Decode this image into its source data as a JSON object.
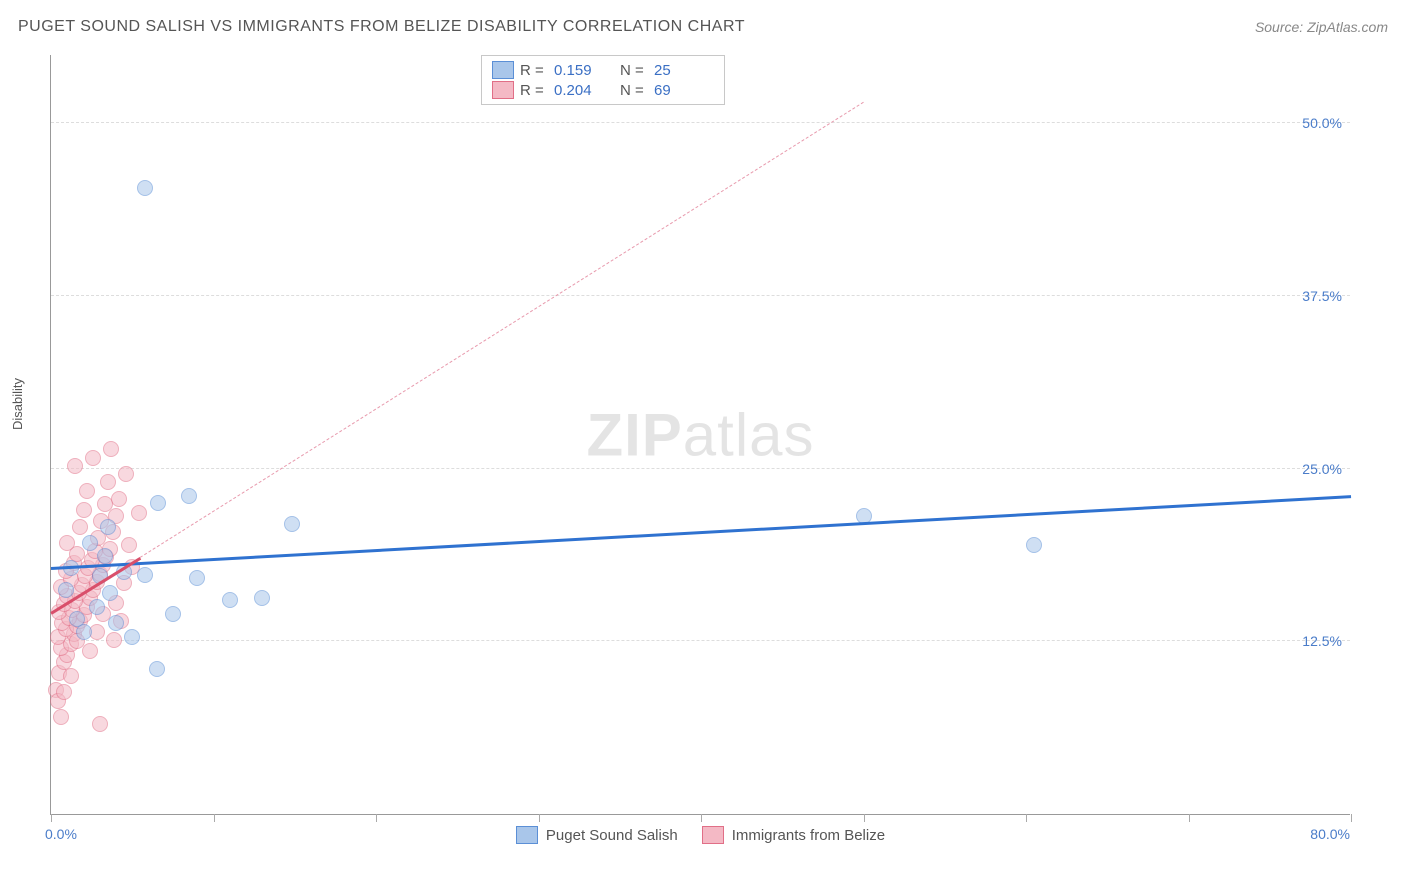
{
  "header": {
    "title": "PUGET SOUND SALISH VS IMMIGRANTS FROM BELIZE DISABILITY CORRELATION CHART",
    "source": "Source: ZipAtlas.com"
  },
  "ylabel": "Disability",
  "watermark": {
    "bold": "ZIP",
    "light": "atlas"
  },
  "chart": {
    "type": "scatter",
    "xlim": [
      0,
      80
    ],
    "ylim": [
      0,
      55
    ],
    "xlim_labels": {
      "min": "0.0%",
      "max": "80.0%"
    },
    "xtick_positions": [
      0,
      10,
      20,
      30,
      40,
      50,
      60,
      70,
      80
    ],
    "yticks": [
      {
        "v": 12.5,
        "label": "12.5%"
      },
      {
        "v": 25.0,
        "label": "25.0%"
      },
      {
        "v": 37.5,
        "label": "37.5%"
      },
      {
        "v": 50.0,
        "label": "50.0%"
      }
    ],
    "grid_color": "#e2e2e2",
    "background_color": "#ffffff",
    "marker_radius": 8,
    "marker_opacity": 0.55,
    "series": [
      {
        "name": "Puget Sound Salish",
        "fill": "#a9c6ea",
        "stroke": "#5b8fd6",
        "R": "0.159",
        "N": "25",
        "trend": {
          "x1": 0,
          "y1": 17.8,
          "x2": 80,
          "y2": 23.0,
          "color": "#2f72d0",
          "width": 2.5,
          "dash": "none"
        },
        "points": [
          [
            5.8,
            45.3
          ],
          [
            3.5,
            20.8
          ],
          [
            6.6,
            22.5
          ],
          [
            8.5,
            23.0
          ],
          [
            14.8,
            21.0
          ],
          [
            3.0,
            17.2
          ],
          [
            4.5,
            17.5
          ],
          [
            5.8,
            17.3
          ],
          [
            11.0,
            15.5
          ],
          [
            13.0,
            15.6
          ],
          [
            2.0,
            13.2
          ],
          [
            5.0,
            12.8
          ],
          [
            6.5,
            10.5
          ],
          [
            50.0,
            21.6
          ],
          [
            60.5,
            19.5
          ],
          [
            2.8,
            15.0
          ],
          [
            3.3,
            18.7
          ],
          [
            0.9,
            16.2
          ],
          [
            1.6,
            14.1
          ],
          [
            4.0,
            13.8
          ],
          [
            2.4,
            19.6
          ],
          [
            7.5,
            14.5
          ],
          [
            9.0,
            17.1
          ],
          [
            1.2,
            17.8
          ],
          [
            3.6,
            16.0
          ]
        ]
      },
      {
        "name": "Immigrants from Belize",
        "fill": "#f4b9c5",
        "stroke": "#e16f87",
        "R": "0.204",
        "N": "69",
        "trend": {
          "x1": 0,
          "y1": 14.5,
          "x2": 50,
          "y2": 51.5,
          "color": "#e89aad",
          "width": 1.5,
          "dash": "5,5"
        },
        "trend_solid": {
          "x1": 0,
          "y1": 14.5,
          "x2": 5.5,
          "y2": 18.5,
          "color": "#d94f6b",
          "width": 2.5
        },
        "points": [
          [
            0.3,
            9.0
          ],
          [
            0.5,
            10.2
          ],
          [
            0.8,
            11.0
          ],
          [
            1.0,
            11.5
          ],
          [
            0.6,
            12.0
          ],
          [
            1.2,
            12.3
          ],
          [
            0.4,
            12.8
          ],
          [
            1.4,
            13.0
          ],
          [
            0.9,
            13.4
          ],
          [
            1.6,
            13.6
          ],
          [
            0.7,
            13.8
          ],
          [
            1.8,
            14.0
          ],
          [
            1.1,
            14.2
          ],
          [
            2.0,
            14.4
          ],
          [
            0.5,
            14.6
          ],
          [
            1.3,
            14.8
          ],
          [
            2.2,
            15.0
          ],
          [
            0.8,
            15.2
          ],
          [
            1.5,
            15.4
          ],
          [
            2.4,
            15.6
          ],
          [
            1.0,
            15.8
          ],
          [
            1.7,
            16.0
          ],
          [
            2.6,
            16.2
          ],
          [
            0.6,
            16.4
          ],
          [
            1.9,
            16.6
          ],
          [
            2.8,
            16.8
          ],
          [
            1.2,
            17.0
          ],
          [
            2.1,
            17.2
          ],
          [
            3.0,
            17.4
          ],
          [
            0.9,
            17.6
          ],
          [
            2.3,
            17.8
          ],
          [
            3.2,
            18.0
          ],
          [
            1.4,
            18.2
          ],
          [
            2.5,
            18.4
          ],
          [
            3.4,
            18.6
          ],
          [
            1.6,
            18.8
          ],
          [
            2.7,
            19.0
          ],
          [
            3.6,
            19.2
          ],
          [
            1.0,
            19.6
          ],
          [
            2.9,
            20.0
          ],
          [
            3.8,
            20.4
          ],
          [
            1.8,
            20.8
          ],
          [
            3.1,
            21.2
          ],
          [
            4.0,
            21.6
          ],
          [
            2.0,
            22.0
          ],
          [
            3.3,
            22.4
          ],
          [
            4.2,
            22.8
          ],
          [
            2.2,
            23.4
          ],
          [
            3.5,
            24.0
          ],
          [
            4.6,
            24.6
          ],
          [
            1.5,
            25.2
          ],
          [
            2.6,
            25.8
          ],
          [
            3.7,
            26.4
          ],
          [
            0.4,
            8.2
          ],
          [
            0.6,
            7.0
          ],
          [
            3.0,
            6.5
          ],
          [
            1.2,
            10.0
          ],
          [
            0.8,
            8.8
          ],
          [
            2.4,
            11.8
          ],
          [
            1.6,
            12.5
          ],
          [
            2.8,
            13.2
          ],
          [
            3.2,
            14.5
          ],
          [
            4.0,
            15.3
          ],
          [
            4.5,
            16.7
          ],
          [
            5.0,
            17.9
          ],
          [
            4.8,
            19.5
          ],
          [
            5.4,
            21.8
          ],
          [
            4.3,
            14.0
          ],
          [
            3.9,
            12.6
          ]
        ]
      }
    ]
  },
  "legend_bottom": [
    {
      "label": "Puget Sound Salish",
      "fill": "#a9c6ea",
      "stroke": "#5b8fd6"
    },
    {
      "label": "Immigrants from Belize",
      "fill": "#f4b9c5",
      "stroke": "#e16f87"
    }
  ]
}
